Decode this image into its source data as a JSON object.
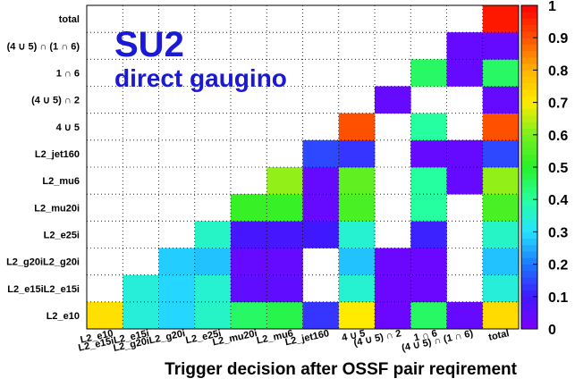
{
  "chart_data": {
    "type": "heatmap",
    "title": "SU2",
    "subtitle": "direct gaugino",
    "xlabel": "Trigger decision after OSSF pair reqirement",
    "ylabel": "",
    "x_categories": [
      "L2_e10",
      "L2_e15iL2_e15i",
      "L2_g20iL2_g20i",
      "L2_e25i",
      "L2_mu20i",
      "L2_mu6",
      "L2_jet160",
      "4 ∪ 5",
      "(4 ∪ 5) ∩ 2",
      "1 ∩ 6",
      "(4 ∪ 5) ∩ (1 ∩ 6)",
      "total"
    ],
    "y_categories": [
      "L2_e10",
      "L2_e15iL2_e15i",
      "L2_g20iL2_g20i",
      "L2_e25i",
      "L2_mu20i",
      "L2_mu6",
      "L2_jet160",
      "4 ∪ 5",
      "(4 ∪ 5) ∩ 2",
      "1 ∩ 6",
      "(4 ∪ 5) ∩ (1 ∩ 6)",
      "total"
    ],
    "zlim": [
      0,
      1
    ],
    "colorbar_ticks": [
      "0",
      "0.1",
      "0.2",
      "0.3",
      "0.4",
      "0.5",
      "0.6",
      "0.7",
      "0.8",
      "0.9",
      "1"
    ],
    "grid": true,
    "values": [
      [
        0.72,
        0.34,
        0.29,
        0.36,
        0.45,
        0.47,
        0.13,
        0.7,
        0.03,
        0.45,
        0.04,
        0.73
      ],
      [
        null,
        0.34,
        0.29,
        0.35,
        0.05,
        0.05,
        null,
        0.35,
        0.03,
        0.03,
        null,
        0.34
      ],
      [
        null,
        null,
        0.28,
        0.27,
        0.04,
        0.04,
        null,
        0.27,
        0.03,
        0.03,
        null,
        0.27
      ],
      [
        null,
        null,
        null,
        0.36,
        0.09,
        0.09,
        0.1,
        0.35,
        null,
        0.11,
        null,
        0.36
      ],
      [
        null,
        null,
        null,
        null,
        0.52,
        0.52,
        0.04,
        0.54,
        null,
        0.4,
        null,
        0.54
      ],
      [
        null,
        null,
        null,
        null,
        null,
        0.62,
        0.04,
        0.57,
        null,
        0.4,
        0.04,
        0.62
      ],
      [
        null,
        null,
        null,
        null,
        null,
        null,
        0.15,
        0.13,
        null,
        0.04,
        0.04,
        0.15
      ],
      [
        null,
        null,
        null,
        null,
        null,
        null,
        null,
        0.9,
        null,
        0.4,
        null,
        0.9
      ],
      [
        null,
        null,
        null,
        null,
        null,
        null,
        null,
        null,
        0.04,
        null,
        null,
        0.04
      ],
      [
        null,
        null,
        null,
        null,
        null,
        null,
        null,
        null,
        null,
        0.45,
        0.04,
        0.45
      ],
      [
        null,
        null,
        null,
        null,
        null,
        null,
        null,
        null,
        null,
        null,
        0.04,
        0.04
      ],
      [
        null,
        null,
        null,
        null,
        null,
        null,
        null,
        null,
        null,
        null,
        null,
        0.97
      ]
    ]
  }
}
